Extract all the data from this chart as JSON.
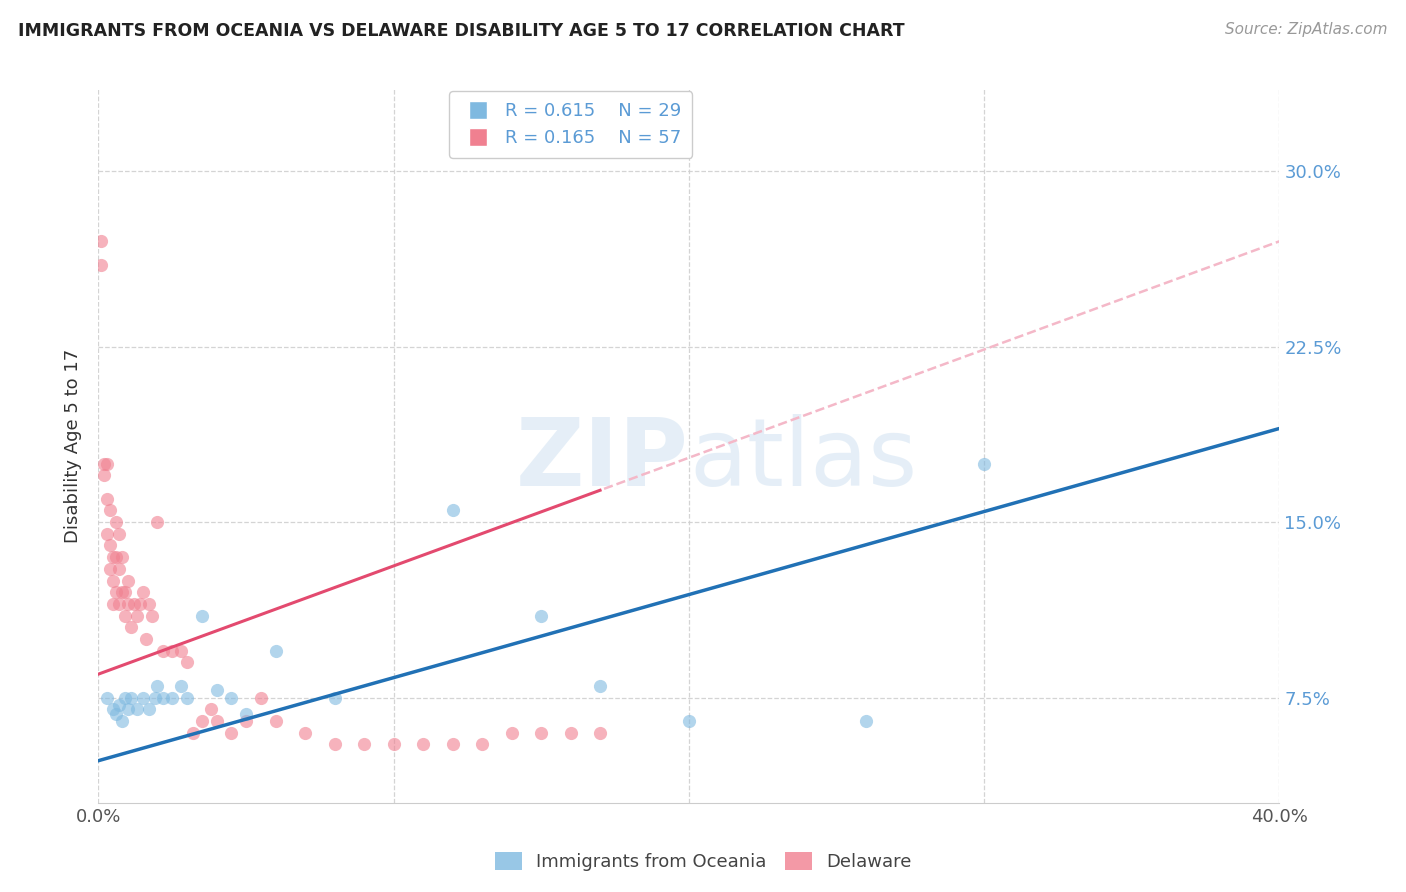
{
  "title": "IMMIGRANTS FROM OCEANIA VS DELAWARE DISABILITY AGE 5 TO 17 CORRELATION CHART",
  "source": "Source: ZipAtlas.com",
  "ylabel": "Disability Age 5 to 17",
  "yticks": [
    0.075,
    0.15,
    0.225,
    0.3
  ],
  "ytick_labels": [
    "7.5%",
    "15.0%",
    "22.5%",
    "30.0%"
  ],
  "xlim": [
    0.0,
    0.4
  ],
  "ylim": [
    0.03,
    0.335
  ],
  "legend_r1": "R = 0.615",
  "legend_n1": "N = 29",
  "legend_r2": "R = 0.165",
  "legend_n2": "N = 57",
  "series1_label": "Immigrants from Oceania",
  "series2_label": "Delaware",
  "color1": "#7fb9e0",
  "color2": "#f08090",
  "trendline1_color": "#2171b5",
  "trendline2_solid_color": "#e34a6f",
  "trendline2_dashed_color": "#f4b8c8",
  "watermark": "ZIPatlas",
  "blue_scatter_x": [
    0.003,
    0.005,
    0.006,
    0.007,
    0.008,
    0.009,
    0.01,
    0.011,
    0.013,
    0.015,
    0.017,
    0.019,
    0.02,
    0.022,
    0.025,
    0.028,
    0.03,
    0.035,
    0.04,
    0.045,
    0.05,
    0.06,
    0.08,
    0.12,
    0.15,
    0.17,
    0.2,
    0.26,
    0.3
  ],
  "blue_scatter_y": [
    0.075,
    0.07,
    0.068,
    0.072,
    0.065,
    0.075,
    0.07,
    0.075,
    0.07,
    0.075,
    0.07,
    0.075,
    0.08,
    0.075,
    0.075,
    0.08,
    0.075,
    0.11,
    0.078,
    0.075,
    0.068,
    0.095,
    0.075,
    0.155,
    0.11,
    0.08,
    0.065,
    0.065,
    0.175
  ],
  "pink_scatter_x": [
    0.001,
    0.001,
    0.002,
    0.002,
    0.003,
    0.003,
    0.003,
    0.004,
    0.004,
    0.004,
    0.005,
    0.005,
    0.005,
    0.006,
    0.006,
    0.006,
    0.007,
    0.007,
    0.007,
    0.008,
    0.008,
    0.009,
    0.009,
    0.01,
    0.01,
    0.011,
    0.012,
    0.013,
    0.014,
    0.015,
    0.016,
    0.017,
    0.018,
    0.02,
    0.022,
    0.025,
    0.028,
    0.03,
    0.032,
    0.035,
    0.038,
    0.04,
    0.045,
    0.05,
    0.055,
    0.06,
    0.07,
    0.08,
    0.09,
    0.1,
    0.11,
    0.12,
    0.13,
    0.14,
    0.15,
    0.16,
    0.17
  ],
  "pink_scatter_y": [
    0.27,
    0.26,
    0.175,
    0.17,
    0.175,
    0.16,
    0.145,
    0.155,
    0.14,
    0.13,
    0.135,
    0.125,
    0.115,
    0.15,
    0.135,
    0.12,
    0.145,
    0.13,
    0.115,
    0.135,
    0.12,
    0.12,
    0.11,
    0.125,
    0.115,
    0.105,
    0.115,
    0.11,
    0.115,
    0.12,
    0.1,
    0.115,
    0.11,
    0.15,
    0.095,
    0.095,
    0.095,
    0.09,
    0.06,
    0.065,
    0.07,
    0.065,
    0.06,
    0.065,
    0.075,
    0.065,
    0.06,
    0.055,
    0.055,
    0.055,
    0.055,
    0.055,
    0.055,
    0.06,
    0.06,
    0.06,
    0.06
  ],
  "background_color": "#ffffff",
  "grid_color": "#d0d0d0"
}
